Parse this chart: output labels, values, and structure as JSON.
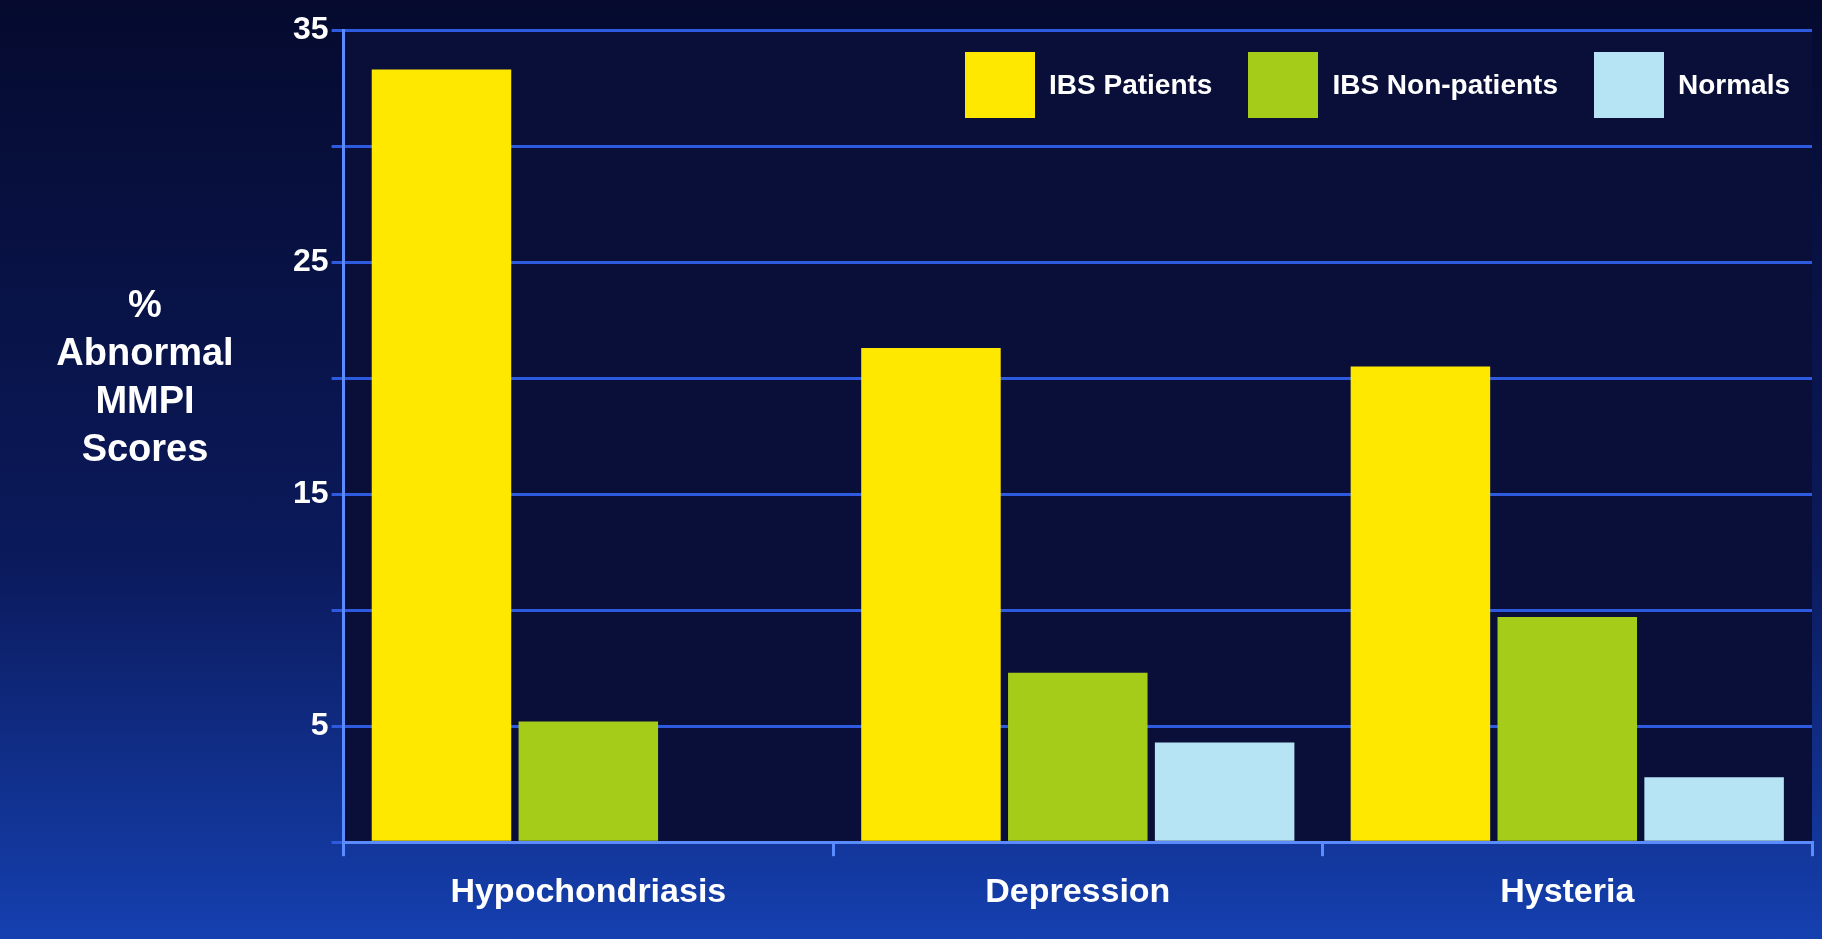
{
  "chart_data": {
    "type": "bar",
    "ylabel": "% Abnormal MMPI Scores",
    "categories": [
      "Hypochondriasis",
      "Depression",
      "Hysteria"
    ],
    "series": [
      {
        "name": "IBS Patients",
        "color": "#ffe800",
        "values": [
          33.3,
          21.3,
          20.5
        ]
      },
      {
        "name": "IBS Non-patients",
        "color": "#a6cc1a",
        "values": [
          5.2,
          7.3,
          9.7
        ]
      },
      {
        "name": "Normals",
        "color": "#b6e4f4",
        "values": [
          null,
          4.3,
          2.8
        ]
      }
    ],
    "ylim": [
      0,
      35
    ],
    "yticks": [
      {
        "value": 0,
        "label": null
      },
      5,
      {
        "value": 10,
        "label": null
      },
      15,
      {
        "value": 20,
        "label": null
      },
      25,
      {
        "value": 30,
        "label": null
      },
      35
    ],
    "grid": "y",
    "legend": "top right"
  }
}
